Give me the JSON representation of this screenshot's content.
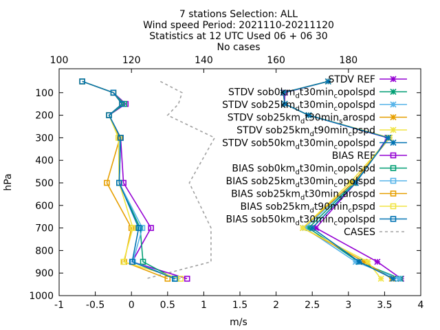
{
  "chart_data": {
    "type": "line",
    "title_lines": [
      "7 stations Selection: ALL",
      "Wind speed  Period: 2021110-20211120",
      "Statistics at 12 UTC  Used 06 + 06 30",
      "No cases"
    ],
    "xlabel": "m/s",
    "ylabel": "hPa",
    "xlim": [
      -1,
      4
    ],
    "ylim": [
      1000,
      0
    ],
    "x_ticks": [
      "-1",
      "-0.5",
      "0",
      "0.5",
      "1",
      "1.5",
      "2",
      "2.5",
      "3",
      "3.5",
      "4"
    ],
    "x2lim": [
      100,
      200
    ],
    "x2_ticks": [
      "100",
      "120",
      "140",
      "160",
      "180"
    ],
    "y_ticks": [
      "100",
      "200",
      "300",
      "400",
      "500",
      "600",
      "700",
      "800",
      "900",
      "1000"
    ],
    "y_tick_values": [
      100,
      200,
      300,
      400,
      500,
      600,
      700,
      800,
      900,
      1000
    ],
    "levels": [
      50,
      100,
      150,
      200,
      300,
      500,
      700,
      850,
      925
    ],
    "legend_position": "top-right",
    "series": [
      {
        "name": "STDV REF",
        "values": [
          2.72,
          2.12,
          2.12,
          2.45,
          3.54,
          3.1,
          2.55,
          3.4,
          3.73
        ],
        "color": "#9400d3",
        "marker": "x"
      },
      {
        "name": "STDV sob0km_d t30min_c opolspd",
        "values": [
          2.72,
          2.1,
          2.12,
          2.45,
          3.56,
          3.08,
          2.45,
          3.14,
          3.72
        ],
        "color": "#009e73",
        "marker": "x"
      },
      {
        "name": "STDV sob25km_d t30min_c opolspd",
        "values": [
          2.72,
          2.1,
          2.12,
          2.45,
          3.57,
          3.07,
          2.4,
          3.1,
          3.7
        ],
        "color": "#56b4e9",
        "marker": "x"
      },
      {
        "name": "STDV sob25km_d t30min_s arospd",
        "values": [
          2.72,
          2.1,
          2.12,
          2.45,
          3.57,
          3.06,
          2.37,
          3.22,
          3.6
        ],
        "color": "#e69f00",
        "marker": "x"
      },
      {
        "name": "STDV sob25km_d t90min_c pspd",
        "values": [
          2.72,
          2.1,
          2.12,
          2.45,
          3.57,
          3.02,
          2.37,
          3.27,
          3.45
        ],
        "color": "#f0e442",
        "marker": "x"
      },
      {
        "name": "STDV sob50km_d t30min_c opolspd",
        "values": [
          2.72,
          2.1,
          2.12,
          2.45,
          3.55,
          3.1,
          2.5,
          3.15,
          3.62
        ],
        "color": "#0072b2",
        "marker": "x"
      },
      {
        "name": "BIAS REF",
        "values": [
          -0.68,
          -0.25,
          -0.08,
          -0.31,
          -0.15,
          -0.11,
          0.27,
          0.01,
          0.77
        ],
        "color": "#9400d3",
        "marker": "s"
      },
      {
        "name": "BIAS sob0km_d t30min_c opolspd",
        "values": [
          -0.68,
          -0.25,
          -0.1,
          -0.31,
          -0.15,
          -0.17,
          0.12,
          0.16,
          0.6
        ],
        "color": "#009e73",
        "marker": "s"
      },
      {
        "name": "BIAS sob25km_d t30min_c opolspd",
        "values": [
          -0.68,
          -0.25,
          -0.13,
          -0.31,
          -0.16,
          -0.17,
          0.15,
          0.02,
          0.62
        ],
        "color": "#56b4e9",
        "marker": "s"
      },
      {
        "name": "BIAS sob25km_d t30min_s arospd",
        "values": [
          -0.68,
          -0.25,
          -0.13,
          -0.31,
          -0.16,
          -0.34,
          0.0,
          -0.1,
          0.5
        ],
        "color": "#e69f00",
        "marker": "s"
      },
      {
        "name": "BIAS sob25km_d t90min_c pspd",
        "values": [
          -0.68,
          -0.25,
          -0.13,
          -0.31,
          -0.18,
          -0.17,
          0.02,
          -0.11,
          0.68
        ],
        "color": "#f0e442",
        "marker": "s"
      },
      {
        "name": "BIAS sob50km_d t30min_c opolspd",
        "values": [
          -0.68,
          -0.25,
          -0.13,
          -0.31,
          -0.15,
          -0.17,
          0.1,
          0.01,
          0.6
        ],
        "color": "#0072b2",
        "marker": "s"
      }
    ],
    "cases": {
      "name": "CASES",
      "color": "#a0a0a0",
      "points": [
        {
          "pressure": 50,
          "cases": 128
        },
        {
          "pressure": 100,
          "cases": 134
        },
        {
          "pressure": 150,
          "cases": 133
        },
        {
          "pressure": 200,
          "cases": 130
        },
        {
          "pressure": 300,
          "cases": 143
        },
        {
          "pressure": 500,
          "cases": 136
        },
        {
          "pressure": 700,
          "cases": 142
        },
        {
          "pressure": 850,
          "cases": 142
        },
        {
          "pressure": 925,
          "cases": 124
        }
      ]
    },
    "legend_entries": [
      {
        "parts": [
          [
            "STDV REF",
            0
          ]
        ]
      },
      {
        "parts": [
          [
            "STDV sob0km",
            0
          ],
          [
            "d",
            -1
          ],
          [
            "t30min",
            0
          ],
          [
            "c",
            -1
          ],
          [
            "opolspd",
            0
          ]
        ]
      },
      {
        "parts": [
          [
            "STDV sob25km",
            0
          ],
          [
            "d",
            -1
          ],
          [
            "t30min",
            0
          ],
          [
            "c",
            -1
          ],
          [
            "opolspd",
            0
          ]
        ]
      },
      {
        "parts": [
          [
            "STDV sob25km",
            0
          ],
          [
            "d",
            -1
          ],
          [
            "t30min",
            0
          ],
          [
            "s",
            -1
          ],
          [
            "arospd",
            0
          ]
        ]
      },
      {
        "parts": [
          [
            "STDV sob25km",
            0
          ],
          [
            "d",
            -1
          ],
          [
            "t90min",
            0
          ],
          [
            "c",
            -1
          ],
          [
            "pspd",
            0
          ]
        ]
      },
      {
        "parts": [
          [
            "STDV sob50km",
            0
          ],
          [
            "d",
            -1
          ],
          [
            "t30min",
            0
          ],
          [
            "c",
            -1
          ],
          [
            "opolspd",
            0
          ]
        ]
      },
      {
        "parts": [
          [
            "BIAS REF",
            0
          ]
        ]
      },
      {
        "parts": [
          [
            "BIAS sob0km",
            0
          ],
          [
            "d",
            -1
          ],
          [
            "t30min",
            0
          ],
          [
            "c",
            -1
          ],
          [
            "opolspd",
            0
          ]
        ]
      },
      {
        "parts": [
          [
            "BIAS sob25km",
            0
          ],
          [
            "d",
            -1
          ],
          [
            "t30min",
            0
          ],
          [
            "c",
            -1
          ],
          [
            "opolspd",
            0
          ]
        ]
      },
      {
        "parts": [
          [
            "BIAS sob25km",
            0
          ],
          [
            "d",
            -1
          ],
          [
            "t30min",
            0
          ],
          [
            "s",
            -1
          ],
          [
            "arospd",
            0
          ]
        ]
      },
      {
        "parts": [
          [
            "BIAS sob25km",
            0
          ],
          [
            "d",
            -1
          ],
          [
            "t90min",
            0
          ],
          [
            "c",
            -1
          ],
          [
            "pspd",
            0
          ]
        ]
      },
      {
        "parts": [
          [
            "BIAS sob50km",
            0
          ],
          [
            "d",
            -1
          ],
          [
            "t30min",
            0
          ],
          [
            "c",
            -1
          ],
          [
            "opolspd",
            0
          ]
        ]
      },
      {
        "parts": [
          [
            "CASES",
            0
          ]
        ]
      }
    ]
  }
}
